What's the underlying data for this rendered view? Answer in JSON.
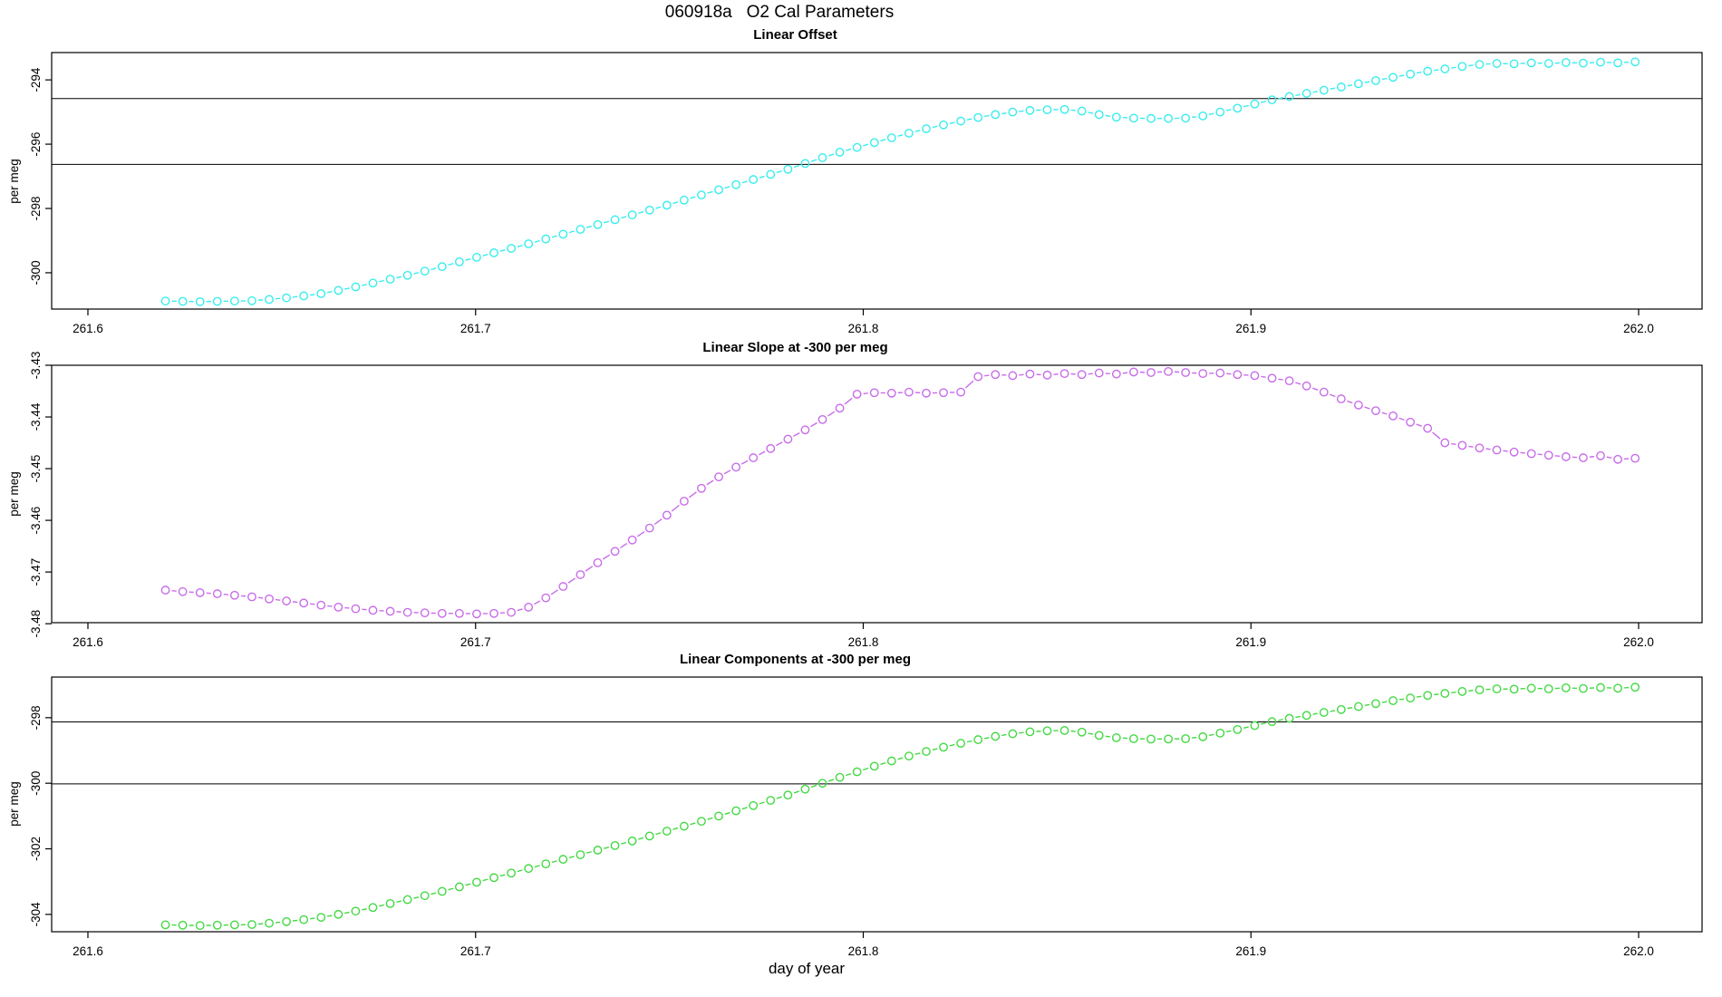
{
  "figure": {
    "title": "060918a   O2 Cal Parameters",
    "x_axis_label": "day of year",
    "background": "#ffffff",
    "frame_color": "#000000"
  },
  "chart_data": [
    {
      "type": "scatter",
      "title": "Linear Offset",
      "ylabel": "per meg",
      "marker": "open-circle-dashed-line",
      "color": "#38EDED",
      "grid": "off",
      "legend": "none",
      "xlim": [
        261.591,
        262.016
      ],
      "ylim": [
        -301.13,
        -293.15
      ],
      "x_ticks": [
        261.6,
        261.7,
        261.8,
        261.9,
        262.0
      ],
      "x_tick_labels": [
        "261.6",
        "261.7",
        "261.8",
        "261.9",
        "262.0"
      ],
      "y_ticks": [
        -294,
        -296,
        -298,
        -300
      ],
      "y_tick_labels": [
        "-294",
        "-296",
        "-298",
        "-300"
      ],
      "hlines": [
        -294.58,
        -296.63
      ],
      "x_start": 261.62,
      "x_step": 0.00446,
      "values": [
        -300.88,
        -300.89,
        -300.9,
        -300.89,
        -300.88,
        -300.87,
        -300.83,
        -300.78,
        -300.72,
        -300.65,
        -300.55,
        -300.44,
        -300.32,
        -300.2,
        -300.08,
        -299.95,
        -299.81,
        -299.66,
        -299.52,
        -299.38,
        -299.24,
        -299.1,
        -298.95,
        -298.8,
        -298.65,
        -298.5,
        -298.35,
        -298.2,
        -298.05,
        -297.9,
        -297.74,
        -297.58,
        -297.42,
        -297.26,
        -297.1,
        -296.94,
        -296.78,
        -296.6,
        -296.42,
        -296.25,
        -296.1,
        -295.95,
        -295.8,
        -295.66,
        -295.52,
        -295.4,
        -295.28,
        -295.17,
        -295.08,
        -295.0,
        -294.95,
        -294.93,
        -294.92,
        -294.97,
        -295.08,
        -295.16,
        -295.19,
        -295.2,
        -295.2,
        -295.19,
        -295.12,
        -295.0,
        -294.88,
        -294.75,
        -294.62,
        -294.52,
        -294.42,
        -294.32,
        -294.22,
        -294.12,
        -294.02,
        -293.92,
        -293.82,
        -293.73,
        -293.66,
        -293.58,
        -293.52,
        -293.49,
        -293.5,
        -293.47,
        -293.49,
        -293.46,
        -293.48,
        -293.45,
        -293.47,
        -293.44
      ]
    },
    {
      "type": "scatter",
      "title": "Linear Slope at -300 per meg",
      "ylabel": "per meg",
      "marker": "open-circle-dashed-line",
      "color": "#C86CE8",
      "grid": "off",
      "legend": "none",
      "xlim": [
        261.591,
        262.016
      ],
      "ylim": [
        -3.4798,
        -3.43
      ],
      "x_ticks": [
        261.6,
        261.7,
        261.8,
        261.9,
        262.0
      ],
      "x_tick_labels": [
        "261.6",
        "261.7",
        "261.8",
        "261.9",
        "262.0"
      ],
      "y_ticks": [
        -3.43,
        -3.44,
        -3.45,
        -3.46,
        -3.47,
        -3.48
      ],
      "y_tick_labels": [
        "-3.43",
        "-3.44",
        "-3.45",
        "-3.46",
        "-3.47",
        "-3.48"
      ],
      "hlines": [],
      "x_start": 261.62,
      "x_step": 0.00446,
      "values": [
        -3.4735,
        -3.4738,
        -3.474,
        -3.4742,
        -3.4745,
        -3.4748,
        -3.4752,
        -3.4756,
        -3.476,
        -3.4764,
        -3.4768,
        -3.4771,
        -3.4774,
        -3.4776,
        -3.4778,
        -3.4779,
        -3.478,
        -3.478,
        -3.4781,
        -3.478,
        -3.4778,
        -3.4768,
        -3.475,
        -3.4728,
        -3.4705,
        -3.4682,
        -3.466,
        -3.4638,
        -3.4615,
        -3.459,
        -3.4563,
        -3.4538,
        -3.4516,
        -3.4497,
        -3.4479,
        -3.4461,
        -3.4443,
        -3.4425,
        -3.4405,
        -3.4383,
        -3.4356,
        -3.4353,
        -3.4354,
        -3.4352,
        -3.4354,
        -3.4353,
        -3.4352,
        -3.4322,
        -3.4318,
        -3.432,
        -3.4317,
        -3.4319,
        -3.4316,
        -3.4318,
        -3.4315,
        -3.4317,
        -3.4313,
        -3.4314,
        -3.4312,
        -3.4314,
        -3.4316,
        -3.4315,
        -3.4318,
        -3.432,
        -3.4325,
        -3.433,
        -3.434,
        -3.4352,
        -3.4365,
        -3.4377,
        -3.4388,
        -3.4398,
        -3.441,
        -3.4422,
        -3.445,
        -3.4455,
        -3.446,
        -3.4464,
        -3.4468,
        -3.4471,
        -3.4474,
        -3.4477,
        -3.4479,
        -3.4475,
        -3.4482,
        -3.448
      ]
    },
    {
      "type": "scatter",
      "title": "Linear Components at -300 per meg",
      "ylabel": "per meg",
      "marker": "open-circle-dashed-line",
      "color": "#43D943",
      "grid": "off",
      "legend": "none",
      "xlim": [
        261.591,
        262.016
      ],
      "ylim": [
        -304.53,
        -296.76
      ],
      "x_ticks": [
        261.6,
        261.7,
        261.8,
        261.9,
        262.0
      ],
      "x_tick_labels": [
        "261.6",
        "261.7",
        "261.8",
        "261.9",
        "262.0"
      ],
      "y_ticks": [
        -298,
        -300,
        -302,
        -304
      ],
      "y_tick_labels": [
        "-298",
        "-300",
        "-302",
        "-304"
      ],
      "hlines": [
        -298.13,
        -300.02
      ],
      "x_start": 261.62,
      "x_step": 0.00446,
      "values": [
        -304.32,
        -304.33,
        -304.34,
        -304.33,
        -304.32,
        -304.31,
        -304.27,
        -304.22,
        -304.16,
        -304.09,
        -304.0,
        -303.9,
        -303.79,
        -303.67,
        -303.55,
        -303.43,
        -303.3,
        -303.16,
        -303.02,
        -302.88,
        -302.74,
        -302.6,
        -302.46,
        -302.32,
        -302.18,
        -302.04,
        -301.9,
        -301.76,
        -301.61,
        -301.46,
        -301.31,
        -301.16,
        -301.0,
        -300.84,
        -300.68,
        -300.52,
        -300.36,
        -300.18,
        -300.0,
        -299.82,
        -299.65,
        -299.48,
        -299.32,
        -299.17,
        -299.03,
        -298.9,
        -298.78,
        -298.67,
        -298.57,
        -298.49,
        -298.43,
        -298.4,
        -298.39,
        -298.44,
        -298.54,
        -298.61,
        -298.64,
        -298.65,
        -298.65,
        -298.64,
        -298.58,
        -298.47,
        -298.36,
        -298.24,
        -298.12,
        -298.02,
        -297.93,
        -297.84,
        -297.75,
        -297.66,
        -297.57,
        -297.48,
        -297.4,
        -297.32,
        -297.26,
        -297.2,
        -297.15,
        -297.12,
        -297.13,
        -297.1,
        -297.12,
        -297.09,
        -297.11,
        -297.08,
        -297.1,
        -297.07
      ]
    }
  ]
}
